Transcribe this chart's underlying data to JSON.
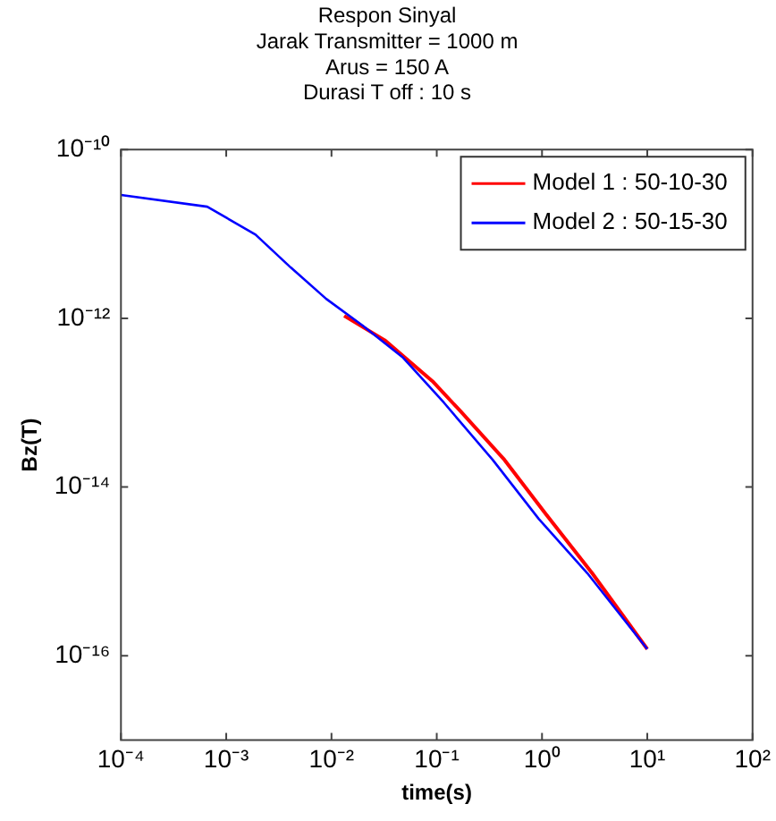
{
  "chart_data": {
    "type": "line",
    "title": "Respon Sinyal",
    "subtitle": [
      "Jarak Transmitter = 1000 m",
      "Arus = 150 A",
      "Durasi T off : 10 s"
    ],
    "xlabel": "time(s)",
    "ylabel": "Bz(T)",
    "log": "xy",
    "xlim": [
      0.0001,
      100
    ],
    "ylim": [
      1e-17,
      1e-10
    ],
    "xticks": [
      {
        "value": 0.0001,
        "label": "10⁻⁴"
      },
      {
        "value": 0.001,
        "label": "10⁻³"
      },
      {
        "value": 0.01,
        "label": "10⁻²"
      },
      {
        "value": 0.1,
        "label": "10⁻¹"
      },
      {
        "value": 1,
        "label": "10⁰"
      },
      {
        "value": 10,
        "label": "10¹"
      },
      {
        "value": 100,
        "label": "10²"
      }
    ],
    "yticks": [
      {
        "value": 1e-16,
        "label": "10⁻¹⁶"
      },
      {
        "value": 1e-14,
        "label": "10⁻¹⁴"
      },
      {
        "value": 1e-12,
        "label": "10⁻¹²"
      },
      {
        "value": 1e-10,
        "label": "10⁻¹⁰"
      }
    ],
    "legend": "top right",
    "grid": false,
    "line_style": "solid",
    "marker": "none",
    "series": [
      {
        "name": "Model 1 : 50-10-30",
        "color": "#ff0000",
        "x": [
          0.0132,
          0.032,
          0.091,
          0.17,
          0.44,
          1.07,
          3.0,
          10
        ],
        "values": [
          1.07e-12,
          5.5e-13,
          1.8e-13,
          7.8e-14,
          2.1e-14,
          4.9e-15,
          9.5e-16,
          1.2e-16
        ]
      },
      {
        "name": "Model 2 : 50-15-30",
        "color": "#0000ff",
        "x": [
          0.0001,
          0.00066,
          0.0019,
          0.0041,
          0.0089,
          0.0195,
          0.048,
          0.117,
          0.34,
          0.93,
          2.7,
          10
        ],
        "values": [
          2.9e-11,
          2.1e-11,
          9.8e-12,
          4e-12,
          1.7e-12,
          8.3e-13,
          3.4e-13,
          1e-13,
          2.1e-14,
          4.2e-15,
          9.5e-16,
          1.2e-16
        ]
      }
    ]
  }
}
